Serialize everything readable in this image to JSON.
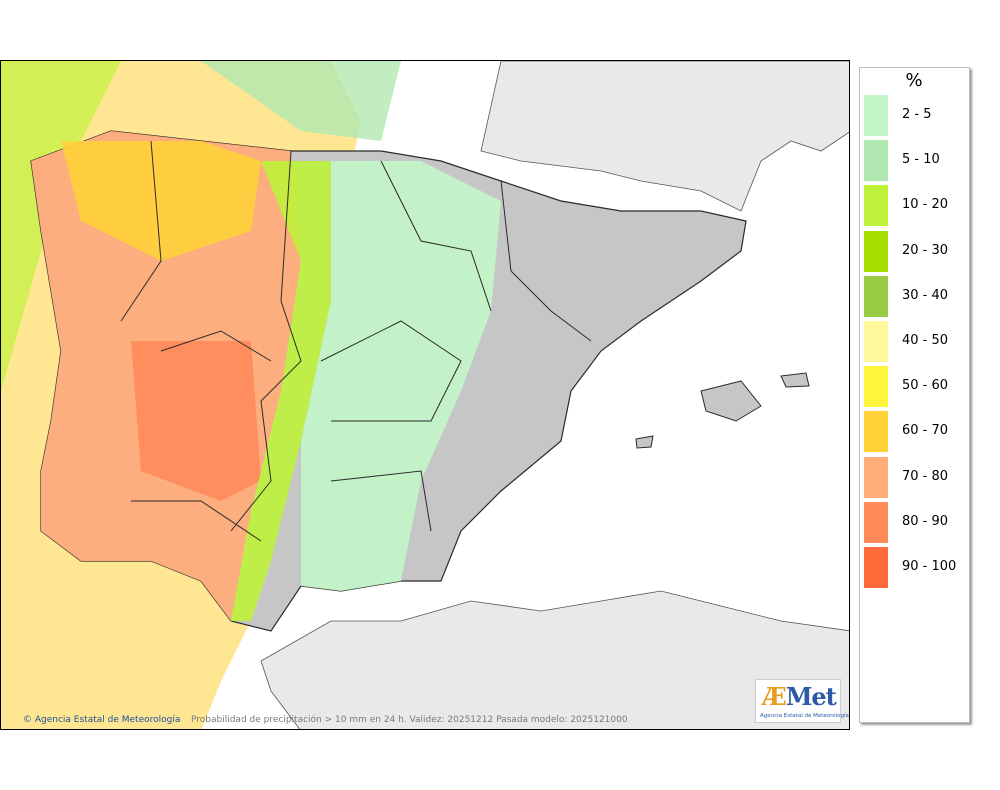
{
  "map": {
    "credit": "Agencia Estatal de Meteorología",
    "caption": "Probabilidad de precipitación > 10 mm en 24 h. Validez: 20251212 Pasada modelo: 2025121000",
    "logo": {
      "word_a": "Æ",
      "word_rest": "Met",
      "subtitle": "Agencia Estatal de Meteorología"
    },
    "colors": {
      "sea": "#e9e9e9",
      "land_dry": "#c6c6c6",
      "border": "#2b2b2b"
    }
  },
  "legend": {
    "title": "%",
    "classes": [
      {
        "label": "2 - 5",
        "color": "#c2f5c8"
      },
      {
        "label": "5 - 10",
        "color": "#b1e8b2"
      },
      {
        "label": "10 - 20",
        "color": "#bff23a"
      },
      {
        "label": "20 - 30",
        "color": "#a6e000"
      },
      {
        "label": "30 - 40",
        "color": "#99cc44"
      },
      {
        "label": "40 - 50",
        "color": "#fff89a"
      },
      {
        "label": "50 - 60",
        "color": "#fff53a"
      },
      {
        "label": "60 - 70",
        "color": "#ffd23a"
      },
      {
        "label": "70 - 80",
        "color": "#ffad7a"
      },
      {
        "label": "80 - 90",
        "color": "#ff8a5a"
      },
      {
        "label": "90 - 100",
        "color": "#ff6a3a"
      }
    ]
  }
}
